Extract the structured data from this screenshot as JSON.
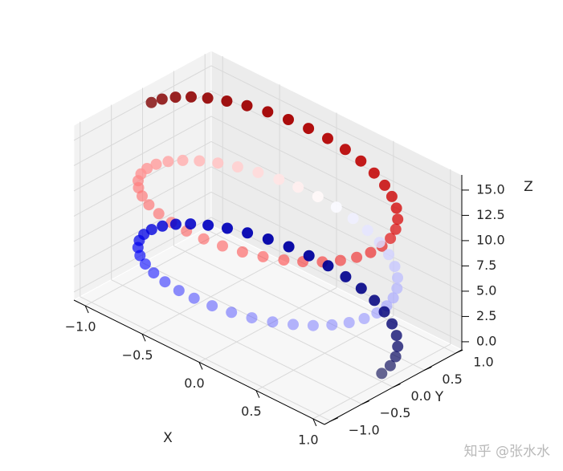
{
  "chart_data": {
    "type": "scatter",
    "projection": "3d",
    "series": [
      {
        "t": [
          0.0,
          0.16,
          0.32,
          0.48,
          0.64,
          0.8,
          0.96,
          1.11,
          1.27,
          1.43,
          1.59,
          1.75,
          1.91,
          2.07,
          2.23,
          2.39,
          2.55,
          2.71,
          2.86,
          3.02,
          3.18,
          3.34,
          3.5,
          3.66,
          3.82,
          3.98,
          4.14,
          4.3,
          4.46,
          4.61,
          4.77,
          4.93,
          5.09,
          5.25,
          5.41,
          5.57,
          5.73,
          5.89,
          6.05,
          6.21,
          6.37,
          6.52,
          6.68,
          6.84,
          7.0,
          7.16,
          7.32,
          7.48,
          7.64,
          7.8,
          7.96,
          8.12,
          8.27,
          8.43,
          8.59,
          8.75,
          8.91,
          9.07,
          9.23,
          9.39,
          9.55,
          9.71,
          9.87,
          10.02,
          10.18,
          10.34,
          10.5,
          10.66,
          10.82,
          10.98,
          11.14,
          11.3,
          11.46,
          11.62,
          11.77,
          11.93,
          12.09,
          12.25,
          12.41,
          12.57,
          12.73,
          12.89,
          13.05,
          13.21,
          13.37,
          13.52,
          13.68,
          13.84,
          14.0,
          14.16,
          14.32,
          14.48,
          14.64,
          14.8,
          14.96,
          15.12,
          15.27,
          15.43,
          15.59,
          15.75
        ],
        "x_expr": "cos(t)",
        "y_expr": "sin(t)",
        "z_expr": "t",
        "colormap": "seismic"
      }
    ],
    "xlabel": "X",
    "ylabel": "Y",
    "zlabel": "Z",
    "xlim": [
      -1.1,
      1.1
    ],
    "ylim": [
      -1.1,
      1.1
    ],
    "zlim": [
      -0.8,
      16.5
    ],
    "xticks": [
      "−1.0",
      "−0.5",
      "0.0",
      "0.5",
      "1.0"
    ],
    "yticks": [
      "−1.0",
      "−0.5",
      "0.0",
      "0.5",
      "1.0"
    ],
    "zticks": [
      "0.0",
      "2.5",
      "5.0",
      "7.5",
      "10.0",
      "12.5",
      "15.0"
    ],
    "grid": true,
    "colors": {
      "pane": "#f2f2f2",
      "grid": "#d9d9d9",
      "axis": "#000000"
    }
  },
  "watermark": "知乎 @张水水"
}
